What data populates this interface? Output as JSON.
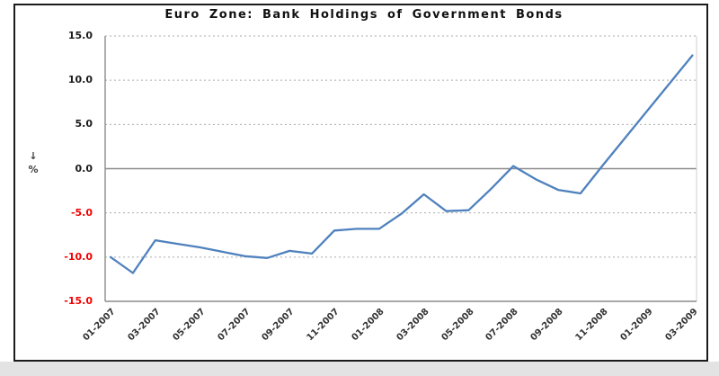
{
  "chart_data": {
    "type": "line",
    "title": "Euro Zone: Bank Holdings of Government Bonds",
    "y_axis_title": "↓ %",
    "xlabel": "",
    "legend": "none",
    "grid": "horizontal dotted gridlines, solid zero line",
    "ylim": [
      -15.0,
      15.0
    ],
    "y_tick_interval": 5,
    "y_tick_labels": [
      "15.0",
      "10.0",
      "5.0",
      "0.0",
      "-5.0",
      "-10.0",
      "-15.0"
    ],
    "x_tick_labels": [
      "01-2007",
      "03-2007",
      "05-2007",
      "07-2007",
      "09-2007",
      "11-2007",
      "01-2008",
      "03-2008",
      "05-2008",
      "07-2008",
      "09-2008",
      "11-2008",
      "01-2009",
      "03-2009"
    ],
    "x": [
      "01-2007",
      "02-2007",
      "03-2007",
      "04-2007",
      "05-2007",
      "06-2007",
      "07-2007",
      "08-2007",
      "09-2007",
      "10-2007",
      "11-2007",
      "12-2007",
      "01-2008",
      "02-2008",
      "03-2008",
      "04-2008",
      "05-2008",
      "06-2008",
      "07-2008",
      "08-2008",
      "09-2008",
      "10-2008",
      "11-2008",
      "12-2008",
      "01-2009",
      "02-2009",
      "03-2009"
    ],
    "values": [
      -10.0,
      -11.8,
      -8.1,
      -8.5,
      -8.9,
      -9.4,
      -9.9,
      -10.1,
      -9.3,
      -9.6,
      -7.0,
      -6.8,
      -6.8,
      -5.1,
      -2.9,
      -4.8,
      -4.7,
      -2.3,
      0.3,
      -1.2,
      -2.4,
      -2.8,
      0.4,
      3.5,
      6.6,
      9.7,
      12.8
    ],
    "colors": {
      "line": "#4f81bd",
      "positive_tick_label": "#1a1a1a",
      "negative_tick_label": "#f40000",
      "gridline": "#ababab",
      "zero_line": "#8c8c8c",
      "axis": "#8c8c8c",
      "border": "#1b1b1b",
      "bottom_strip": "#e3e3e3"
    }
  }
}
